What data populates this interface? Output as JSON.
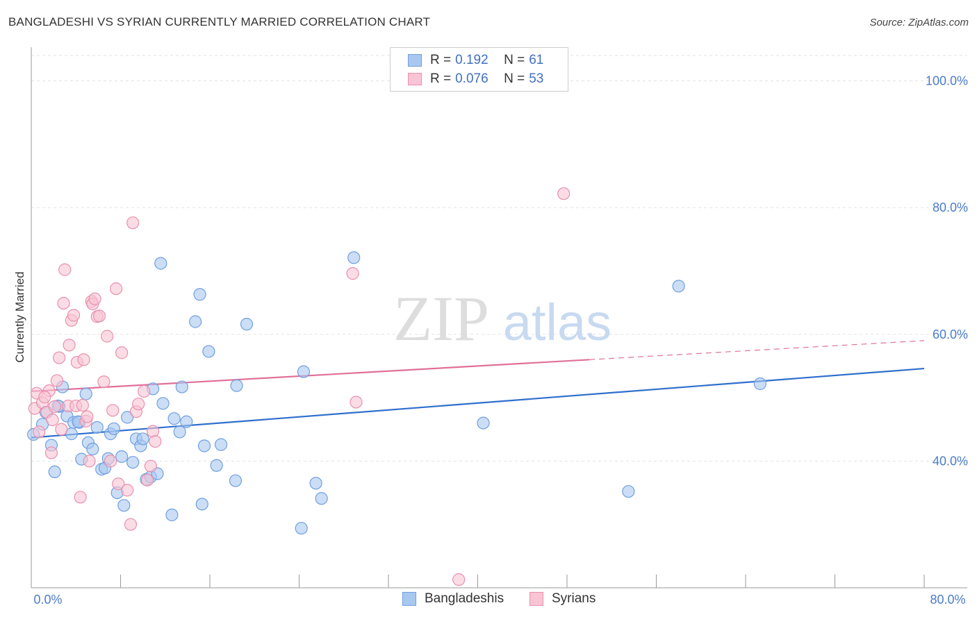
{
  "header": {
    "title": "BANGLADESHI VS SYRIAN CURRENTLY MARRIED CORRELATION CHART",
    "source": "Source: ZipAtlas.com"
  },
  "watermark": {
    "part1": "ZIP",
    "part2": "atlas"
  },
  "legend": {
    "r_label": "R =",
    "n_label": "N =",
    "rows": [
      {
        "r": "0.192",
        "n": "61",
        "color": "#a8c8f0",
        "border": "#6f9fe0"
      },
      {
        "r": "0.076",
        "n": "53",
        "color": "#f9c4d4",
        "border": "#e890ad"
      }
    ]
  },
  "bottom_legend": [
    {
      "label": "Bangladeshis",
      "color": "#a8c8f0",
      "border": "#6f9fe0"
    },
    {
      "label": "Syrians",
      "color": "#f9c4d4",
      "border": "#e890ad"
    }
  ],
  "chart_data": {
    "type": "scatter",
    "ylabel": "Currently Married",
    "xlim": [
      0,
      80
    ],
    "ylim": [
      20,
      104
    ],
    "x_tick_labels": [
      "0.0%",
      "80.0%"
    ],
    "y_tick_labels": [
      "100.0%",
      "80.0%",
      "60.0%",
      "40.0%"
    ],
    "y_ticks": [
      100,
      80,
      60,
      40
    ],
    "series": [
      {
        "name": "Bangladeshis",
        "color": "#a8c8f0",
        "stroke": "#6f9fe0",
        "trend": {
          "x0": 0,
          "y0": 43.7,
          "x1": 80,
          "y1": 54.6,
          "solid_to": 80,
          "color": "#2f6fcd"
        },
        "points": [
          [
            0.2,
            44.2
          ],
          [
            1.0,
            45.8
          ],
          [
            1.3,
            47.7
          ],
          [
            1.8,
            42.5
          ],
          [
            2.1,
            38.3
          ],
          [
            2.5,
            48.6
          ],
          [
            2.8,
            51.7
          ],
          [
            3.2,
            47.1
          ],
          [
            3.6,
            44.3
          ],
          [
            3.8,
            46.1
          ],
          [
            4.3,
            46.1
          ],
          [
            4.5,
            40.3
          ],
          [
            4.9,
            50.6
          ],
          [
            5.1,
            42.9
          ],
          [
            5.5,
            41.9
          ],
          [
            5.9,
            45.3
          ],
          [
            6.3,
            38.7
          ],
          [
            6.6,
            38.9
          ],
          [
            6.9,
            40.4
          ],
          [
            7.1,
            44.3
          ],
          [
            7.4,
            45.1
          ],
          [
            7.7,
            35.0
          ],
          [
            8.1,
            40.7
          ],
          [
            8.3,
            33.0
          ],
          [
            8.6,
            46.9
          ],
          [
            9.1,
            39.8
          ],
          [
            9.4,
            43.5
          ],
          [
            9.8,
            42.4
          ],
          [
            10.0,
            43.5
          ],
          [
            10.3,
            37.1
          ],
          [
            10.7,
            37.5
          ],
          [
            10.9,
            51.4
          ],
          [
            11.3,
            38.0
          ],
          [
            11.6,
            71.2
          ],
          [
            11.8,
            49.1
          ],
          [
            12.6,
            31.5
          ],
          [
            12.8,
            46.7
          ],
          [
            13.3,
            44.6
          ],
          [
            13.5,
            51.7
          ],
          [
            13.9,
            46.2
          ],
          [
            14.7,
            62.0
          ],
          [
            15.1,
            66.3
          ],
          [
            15.3,
            33.2
          ],
          [
            15.5,
            42.4
          ],
          [
            15.9,
            57.3
          ],
          [
            16.6,
            39.3
          ],
          [
            17.0,
            42.6
          ],
          [
            18.3,
            36.9
          ],
          [
            18.4,
            51.9
          ],
          [
            19.3,
            61.6
          ],
          [
            24.2,
            29.4
          ],
          [
            24.4,
            54.1
          ],
          [
            25.5,
            36.5
          ],
          [
            26.0,
            34.1
          ],
          [
            28.9,
            72.1
          ],
          [
            40.5,
            46.0
          ],
          [
            53.5,
            35.2
          ],
          [
            58.0,
            67.6
          ],
          [
            65.3,
            52.2
          ],
          [
            2.4,
            48.7
          ],
          [
            4.2,
            46.2
          ]
        ]
      },
      {
        "name": "Syrians",
        "color": "#f9c4d4",
        "stroke": "#e890ad",
        "trend": {
          "x0": 0,
          "y0": 51.0,
          "x1": 80,
          "y1": 59.0,
          "solid_to": 50,
          "color": "#e07098"
        },
        "points": [
          [
            0.3,
            48.3
          ],
          [
            0.5,
            50.7
          ],
          [
            0.7,
            44.6
          ],
          [
            1.0,
            49.2
          ],
          [
            1.4,
            47.7
          ],
          [
            1.6,
            51.1
          ],
          [
            1.8,
            41.3
          ],
          [
            1.9,
            46.5
          ],
          [
            2.1,
            48.6
          ],
          [
            2.3,
            52.7
          ],
          [
            2.5,
            56.3
          ],
          [
            2.7,
            45.0
          ],
          [
            2.9,
            64.9
          ],
          [
            3.0,
            70.2
          ],
          [
            3.3,
            48.7
          ],
          [
            3.4,
            58.3
          ],
          [
            3.6,
            62.2
          ],
          [
            3.8,
            63.0
          ],
          [
            4.0,
            48.7
          ],
          [
            4.1,
            55.6
          ],
          [
            4.4,
            34.3
          ],
          [
            4.6,
            48.8
          ],
          [
            4.7,
            56.0
          ],
          [
            4.9,
            46.3
          ],
          [
            5.0,
            47.0
          ],
          [
            5.2,
            40.0
          ],
          [
            5.4,
            65.2
          ],
          [
            5.5,
            64.8
          ],
          [
            5.7,
            65.6
          ],
          [
            5.9,
            62.8
          ],
          [
            6.1,
            62.9
          ],
          [
            6.5,
            52.5
          ],
          [
            6.8,
            59.7
          ],
          [
            7.1,
            40.0
          ],
          [
            7.3,
            48.0
          ],
          [
            7.6,
            67.2
          ],
          [
            7.8,
            36.4
          ],
          [
            8.1,
            57.1
          ],
          [
            8.6,
            35.4
          ],
          [
            8.9,
            30.0
          ],
          [
            9.1,
            77.6
          ],
          [
            9.4,
            47.8
          ],
          [
            9.6,
            49.0
          ],
          [
            10.1,
            51.0
          ],
          [
            10.4,
            37.0
          ],
          [
            10.7,
            39.2
          ],
          [
            10.9,
            44.7
          ],
          [
            11.1,
            43.1
          ],
          [
            28.8,
            69.6
          ],
          [
            29.1,
            49.3
          ],
          [
            47.7,
            82.2
          ],
          [
            38.3,
            21.3
          ],
          [
            1.2,
            50.1
          ]
        ]
      }
    ]
  }
}
